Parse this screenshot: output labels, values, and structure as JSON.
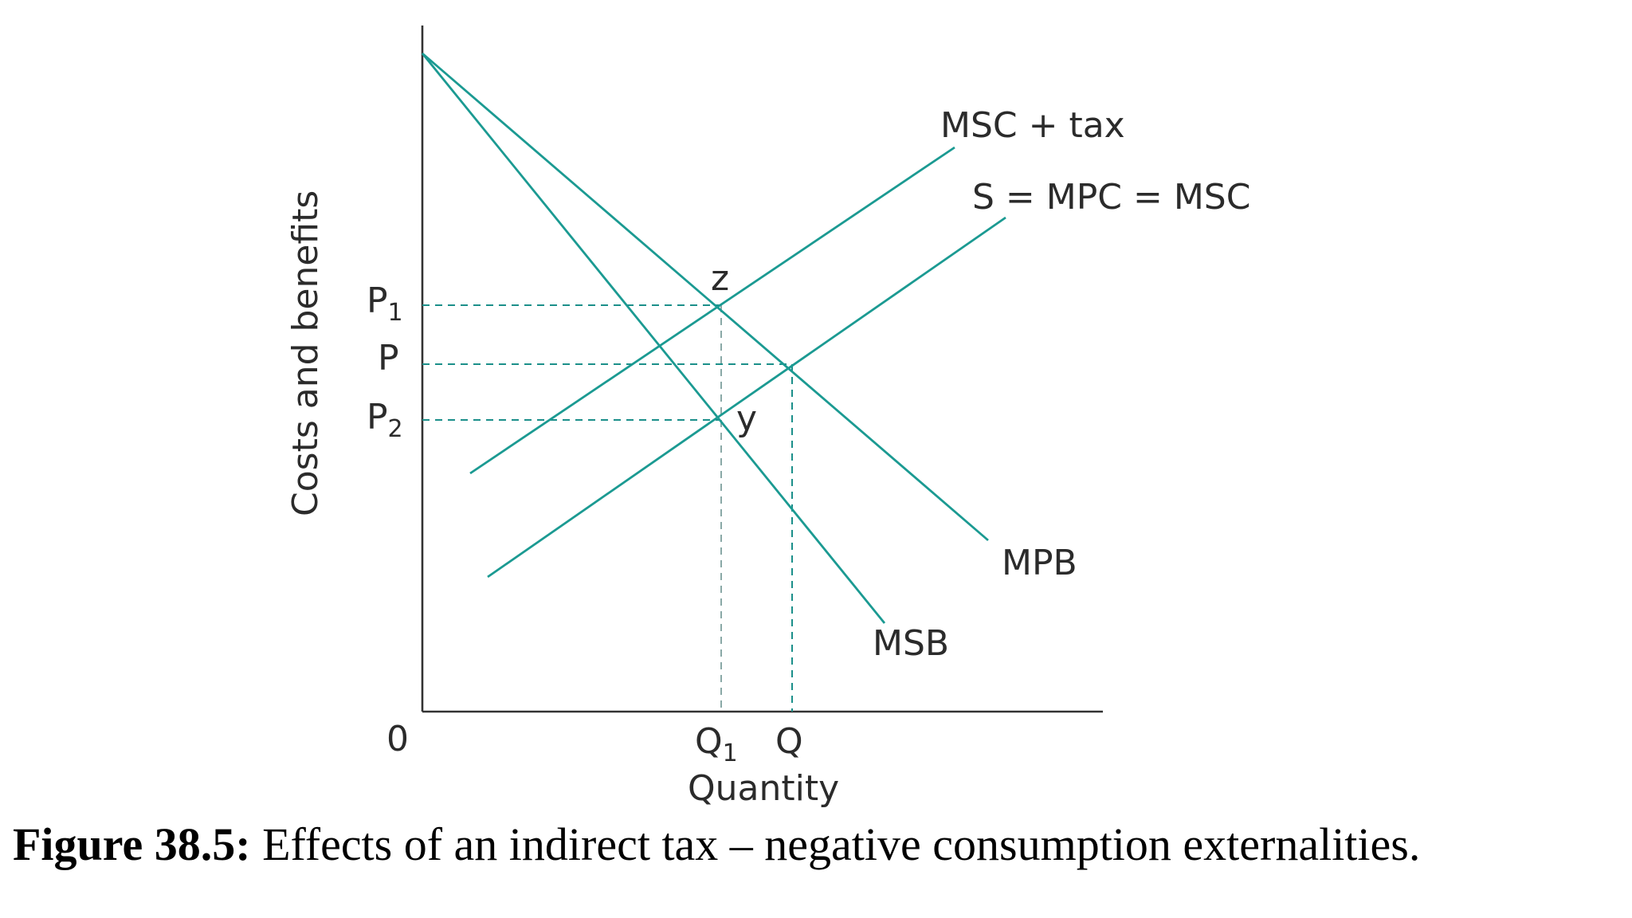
{
  "axes": {
    "y_label": "Costs and benefits",
    "x_label": "Quantity",
    "origin_label": "0"
  },
  "price_labels": {
    "p1_main": "P",
    "p1_sub": "1",
    "p": "P",
    "p2_main": "P",
    "p2_sub": "2"
  },
  "quantity_labels": {
    "q1_main": "Q",
    "q1_sub": "1",
    "q": "Q"
  },
  "curves": {
    "msc_tax": "MSC + tax",
    "supply": "S = MPC = MSC",
    "mpb": "MPB",
    "msb": "MSB"
  },
  "points": {
    "z": "z",
    "y": "y"
  },
  "caption": {
    "bold": "Figure 38.5:",
    "text": " Effects of an indirect tax – negative consumption externalities."
  },
  "colors": {
    "curve": "#1b9a92",
    "axis": "#333333"
  }
}
